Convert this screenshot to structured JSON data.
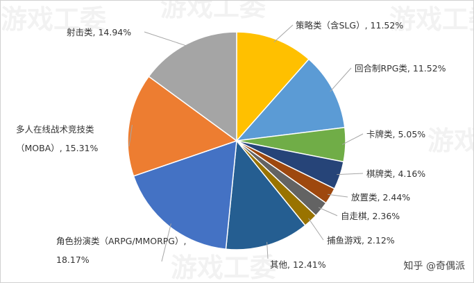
{
  "chart_data": {
    "type": "pie",
    "categories": [
      "策略类（含SLG）",
      "回合制RPG类",
      "卡牌类",
      "棋牌类",
      "放置类",
      "自走棋",
      "捕鱼游戏",
      "其他",
      "角色扮演类（ARPG/MMORPG）",
      "多人在线战术竞技类（MOBA）",
      "射击类"
    ],
    "values": [
      11.52,
      11.52,
      5.05,
      4.16,
      2.44,
      2.36,
      2.12,
      12.41,
      18.17,
      15.31,
      14.94
    ],
    "value_labels": [
      "11.52%",
      "11.52%",
      "5.05%",
      "4.16%",
      "2.44%",
      "2.36%",
      "2.12%",
      "12.41%",
      "18.17%",
      "15.31%",
      "14.94%"
    ],
    "label_separator": ", ",
    "colors": [
      "#FFC000",
      "#5B9BD5",
      "#70AD47",
      "#264478",
      "#9E480E",
      "#636363",
      "#997300",
      "#255E91",
      "#4472C4",
      "#ED7D31",
      "#A5A5A5"
    ],
    "watermark": "游戏工委",
    "credit": "知乎 @奇偶派"
  }
}
